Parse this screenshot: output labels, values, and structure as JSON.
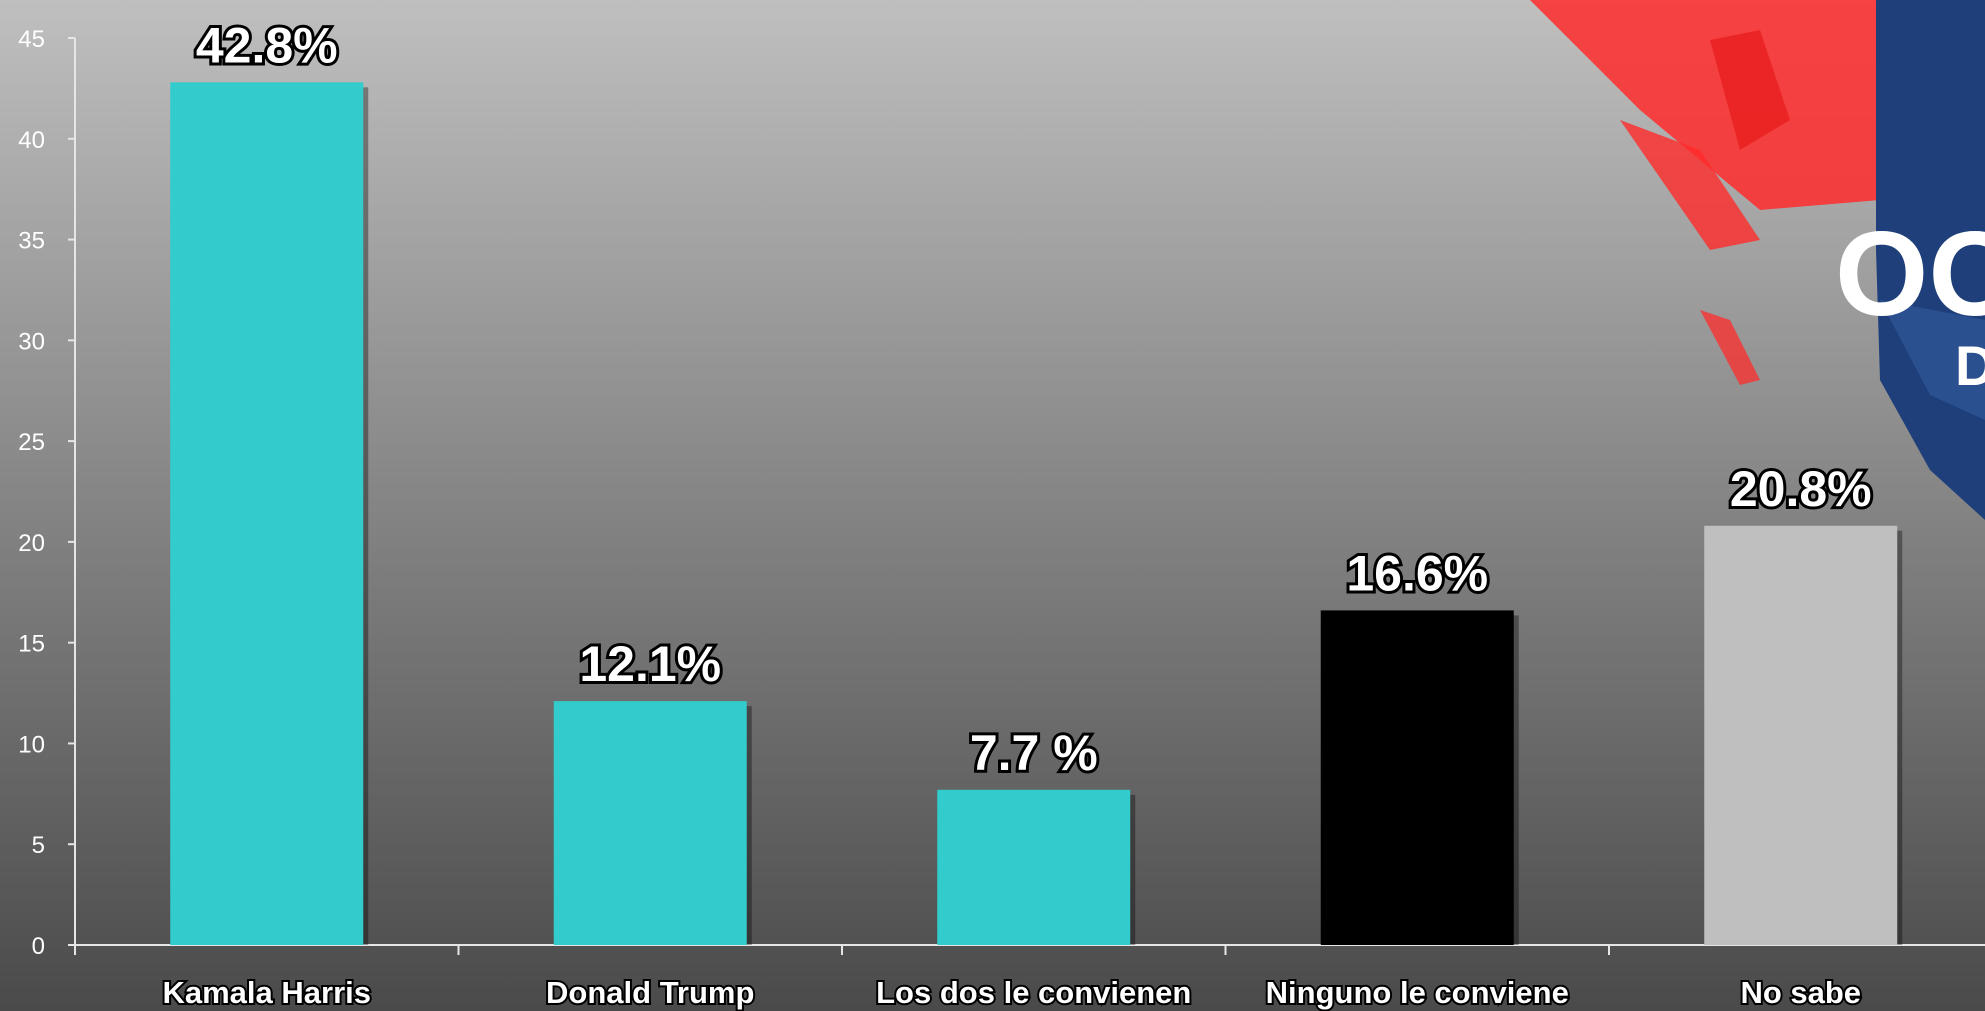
{
  "chart_data": {
    "type": "bar",
    "categories": [
      "Kamala Harris",
      "Donald Trump",
      "Los dos le convienen",
      "Ninguno le conviene",
      "No sabe"
    ],
    "values": [
      42.8,
      12.1,
      7.7,
      16.6,
      20.8
    ],
    "value_labels": [
      "42.8%",
      "12.1%",
      "7.7 %",
      "16.6%",
      "20.8%"
    ],
    "bar_colors": [
      "#33cccc",
      "#33cccc",
      "#33cccc",
      "#000000",
      "#bfbfbf"
    ],
    "ylim": [
      0,
      45
    ],
    "yticks": [
      0,
      5,
      10,
      15,
      20,
      25,
      30,
      35,
      40,
      45
    ],
    "grid": false,
    "title": "",
    "xlabel": "",
    "ylabel": ""
  },
  "decor": {
    "logo_fragment": "OO",
    "logo_sub_fragment": "D",
    "flag_red": "#ff2b2b",
    "flag_blue": "#1e3f7a"
  }
}
